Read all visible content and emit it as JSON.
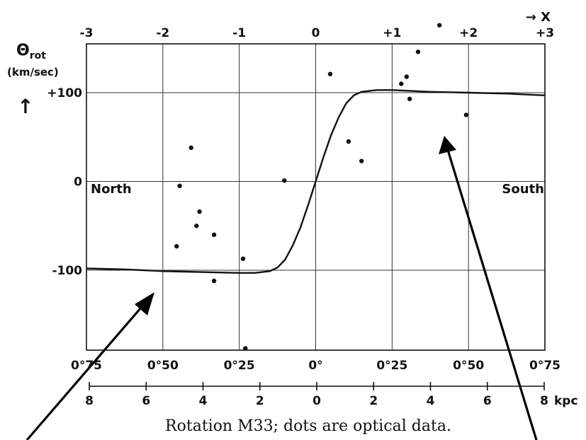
{
  "chart_data": {
    "type": "scatter",
    "title": "",
    "caption": "Rotation M33; dots are optical data.",
    "ylabel_top": "Θrot",
    "ylabel_sym": "Θ",
    "ylabel_sub": "rot",
    "ylabel_unit": "(km/sec)",
    "ylabel_arrow": "↑",
    "x_top_label": "→ X",
    "x_top_range": [
      -3,
      3
    ],
    "x_top_ticks": [
      "-3",
      "-2",
      "-1",
      "0",
      "+1",
      "+2",
      "+3"
    ],
    "angle_ticks": [
      "0°75",
      "0°50",
      "0°25",
      "0°",
      "0°25",
      "0°50",
      "0°75"
    ],
    "kpc_ticks": [
      "8",
      "6",
      "4",
      "2",
      "0",
      "2",
      "4",
      "6",
      "8"
    ],
    "kpc_unit": "kpc",
    "y_ticks": [
      "+100",
      "0",
      "-100"
    ],
    "ylim": [
      -190,
      155
    ],
    "annotations": {
      "left": "North",
      "right": "South"
    },
    "series": [
      {
        "kind": "line",
        "points": [
          [
            -3.0,
            -98
          ],
          [
            -2.5,
            -99
          ],
          [
            -2.0,
            -101
          ],
          [
            -1.5,
            -102
          ],
          [
            -1.0,
            -103
          ],
          [
            -0.8,
            -103
          ],
          [
            -0.6,
            -101
          ],
          [
            -0.5,
            -97
          ],
          [
            -0.4,
            -88
          ],
          [
            -0.3,
            -72
          ],
          [
            -0.2,
            -52
          ],
          [
            -0.1,
            -27
          ],
          [
            0.0,
            0
          ],
          [
            0.1,
            27
          ],
          [
            0.2,
            52
          ],
          [
            0.3,
            72
          ],
          [
            0.4,
            88
          ],
          [
            0.5,
            97
          ],
          [
            0.6,
            101
          ],
          [
            0.8,
            103
          ],
          [
            1.0,
            103
          ],
          [
            1.5,
            101
          ],
          [
            2.0,
            100
          ],
          [
            2.5,
            99
          ],
          [
            3.0,
            97
          ]
        ]
      },
      {
        "kind": "points",
        "points": [
          [
            -1.82,
            -73
          ],
          [
            -1.78,
            -5
          ],
          [
            -1.63,
            38
          ],
          [
            -1.56,
            -50
          ],
          [
            -1.52,
            -34
          ],
          [
            -1.33,
            -60
          ],
          [
            -1.33,
            -112
          ],
          [
            -0.92,
            -188
          ],
          [
            -0.95,
            -87
          ],
          [
            -0.41,
            1
          ],
          [
            0.19,
            121
          ],
          [
            0.43,
            45
          ],
          [
            0.6,
            23
          ],
          [
            1.12,
            110
          ],
          [
            1.19,
            118
          ],
          [
            1.23,
            93
          ],
          [
            1.34,
            146
          ],
          [
            1.62,
            176
          ],
          [
            1.97,
            75
          ]
        ]
      }
    ],
    "arrows": 2
  }
}
